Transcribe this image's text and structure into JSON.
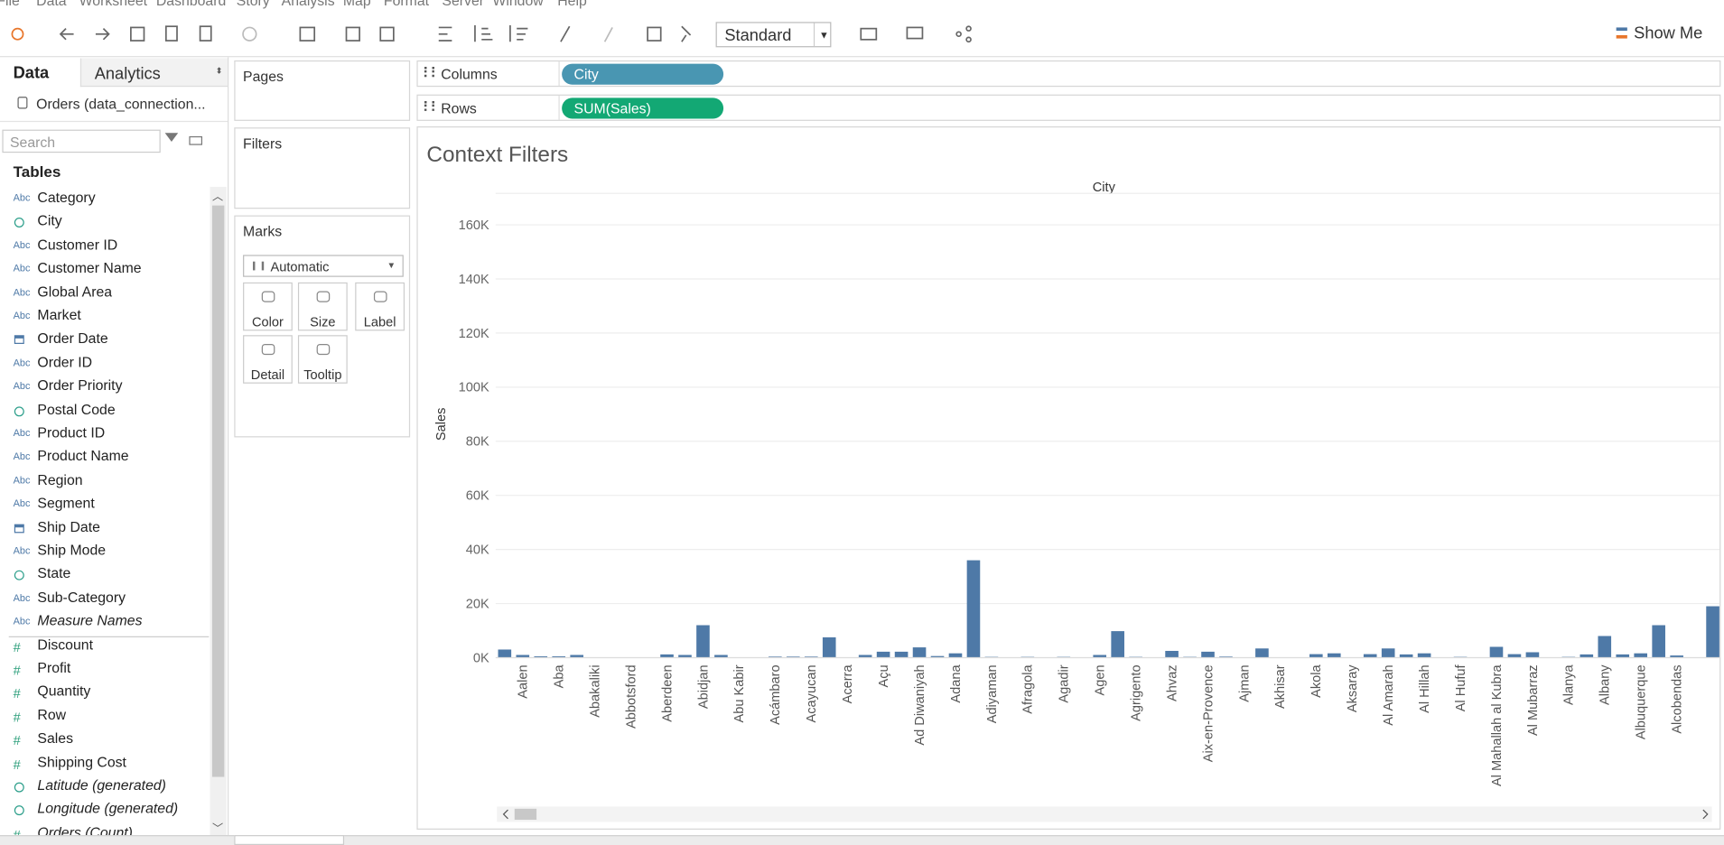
{
  "menu": [
    "File",
    "Data",
    "Worksheet",
    "Dashboard",
    "Story",
    "Analysis",
    "Map",
    "Format",
    "Server",
    "Window",
    "Help"
  ],
  "toolbar": {
    "fit": "Standard",
    "show_me": "Show Me"
  },
  "data_pane": {
    "tabs": [
      "Data",
      "Analytics"
    ],
    "source": "Orders (data_connection...",
    "search_placeholder": "Search",
    "tables_header": "Tables",
    "fields": [
      {
        "name": "Category",
        "icon": "Abc"
      },
      {
        "name": "City",
        "kind": "geo"
      },
      {
        "name": "Customer ID",
        "icon": "Abc"
      },
      {
        "name": "Customer Name",
        "icon": "Abc"
      },
      {
        "name": "Global Area",
        "icon": "Abc"
      },
      {
        "name": "Market",
        "icon": "Abc"
      },
      {
        "name": "Order Date",
        "kind": "date"
      },
      {
        "name": "Order ID",
        "icon": "Abc"
      },
      {
        "name": "Order Priority",
        "icon": "Abc"
      },
      {
        "name": "Postal Code",
        "kind": "geo"
      },
      {
        "name": "Product ID",
        "icon": "Abc"
      },
      {
        "name": "Product Name",
        "icon": "Abc"
      },
      {
        "name": "Region",
        "icon": "Abc"
      },
      {
        "name": "Segment",
        "icon": "Abc"
      },
      {
        "name": "Ship Date",
        "kind": "date"
      },
      {
        "name": "Ship Mode",
        "icon": "Abc"
      },
      {
        "name": "State",
        "kind": "geo"
      },
      {
        "name": "Sub-Category",
        "icon": "Abc"
      },
      {
        "name": "Measure Names",
        "icon": "Abc",
        "italic": true
      }
    ],
    "measures": [
      {
        "name": "Discount",
        "icon": "#"
      },
      {
        "name": "Profit",
        "icon": "#"
      },
      {
        "name": "Quantity",
        "icon": "#"
      },
      {
        "name": "Row",
        "icon": "#"
      },
      {
        "name": "Sales",
        "icon": "#"
      },
      {
        "name": "Shipping Cost",
        "icon": "#"
      },
      {
        "name": "Latitude (generated)",
        "kind": "geo",
        "italic": true
      },
      {
        "name": "Longitude (generated)",
        "kind": "geo",
        "italic": true
      },
      {
        "name": "Orders (Count)",
        "icon": "#",
        "italic": true
      }
    ]
  },
  "cards": {
    "pages": "Pages",
    "filters": "Filters",
    "marks": "Marks",
    "mark_type": "Automatic",
    "mark_buttons": [
      "Color",
      "Size",
      "Label",
      "Detail",
      "Tooltip"
    ]
  },
  "shelves": {
    "columns_label": "Columns",
    "columns_pill": "City",
    "rows_label": "Rows",
    "rows_pill": "SUM(Sales)"
  },
  "chart_data": {
    "type": "bar",
    "title": "Context Filters",
    "x_title": "City",
    "y_title": "Sales",
    "color": "#4e79a7",
    "grid": true,
    "categories": [
      null,
      "Aalen",
      null,
      "Aba",
      null,
      "Abakaliki",
      null,
      "Abbotsford",
      null,
      "Aberdeen",
      null,
      "Abidjan",
      null,
      "Abu Kabir",
      null,
      "Acámbaro",
      null,
      "Acayucan",
      null,
      "Acerra",
      null,
      "Açu",
      null,
      "Ad Diwaniyah",
      null,
      "Adana",
      null,
      "Adiyaman",
      null,
      "Afragola",
      null,
      "Agadir",
      null,
      "Agen",
      null,
      "Agrigento",
      null,
      "Ahvaz",
      null,
      "Aix-en-Provence",
      null,
      "Ajman",
      null,
      "Akhisar",
      null,
      "Akola",
      null,
      "Aksaray",
      null,
      "Al Amarah",
      null,
      "Al Hillah",
      null,
      "Al Hufuf",
      null,
      "Al Mahallah al Kubra",
      null,
      "Al Mubarraz",
      null,
      "Alanya",
      null,
      "Albany",
      null,
      "Albuquerque",
      null,
      "Alcobendas",
      null,
      null
    ],
    "values": [
      3000,
      1000,
      500,
      500,
      1000,
      0,
      0,
      0,
      0,
      1200,
      1000,
      12000,
      1000,
      0,
      0,
      400,
      400,
      400,
      7500,
      0,
      1000,
      2200,
      2200,
      3800,
      600,
      1600,
      36000,
      300,
      0,
      300,
      0,
      300,
      0,
      1000,
      9800,
      300,
      0,
      2500,
      300,
      2200,
      400,
      0,
      3400,
      0,
      0,
      1300,
      1600,
      0,
      1300,
      3400,
      1200,
      1600,
      0,
      300,
      0,
      4000,
      1300,
      2000,
      0,
      300,
      1200,
      8000,
      1200,
      1600,
      12000,
      800,
      0,
      19000
    ],
    "ylim": [
      0,
      170000
    ],
    "yticks": [
      {
        "value": 0,
        "label": "0K"
      },
      {
        "value": 20000,
        "label": "20K"
      },
      {
        "value": 40000,
        "label": "40K"
      },
      {
        "value": 60000,
        "label": "60K"
      },
      {
        "value": 80000,
        "label": "80K"
      },
      {
        "value": 100000,
        "label": "100K"
      },
      {
        "value": 120000,
        "label": "120K"
      },
      {
        "value": 140000,
        "label": "140K"
      },
      {
        "value": 160000,
        "label": "160K"
      }
    ]
  }
}
